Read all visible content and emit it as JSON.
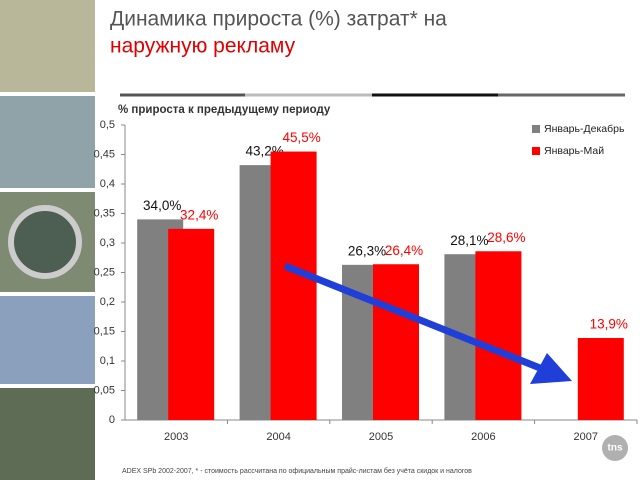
{
  "chart_data": {
    "type": "bar",
    "title_lines": [
      "Динамика прироста (%) затрат* на",
      "наружную рекламу"
    ],
    "subtitle": "% прироста к предыдущему периоду",
    "categories": [
      "2003",
      "2004",
      "2005",
      "2006",
      "2007"
    ],
    "series": [
      {
        "name": "Январь-Декабрь",
        "color": "#808080",
        "values": [
          0.34,
          0.432,
          0.263,
          0.281,
          null
        ],
        "value_labels": [
          "34,0%",
          "43,2%",
          "26,3%",
          "28,1%",
          null
        ]
      },
      {
        "name": "Январь-Май",
        "color": "#ff0000",
        "values": [
          0.324,
          0.455,
          0.264,
          0.286,
          0.139
        ],
        "value_labels": [
          "32,4%",
          "45,5%",
          "26,4%",
          "28,6%",
          "13,9%"
        ]
      }
    ],
    "ylim": [
      0,
      0.5
    ],
    "yticks": [
      0,
      {
        "value": 0.05,
        "label": "0,05"
      },
      {
        "value": 0.1,
        "label": "0,1"
      },
      {
        "value": 0.15,
        "label": "0,15"
      },
      {
        "value": 0.2,
        "label": "0,2"
      },
      {
        "value": 0.25,
        "label": "0,25"
      },
      {
        "value": 0.3,
        "label": "0,3"
      },
      {
        "value": 0.35,
        "label": "0,35"
      },
      {
        "value": 0.4,
        "label": "0,4"
      },
      {
        "value": 0.45,
        "label": "0,45"
      },
      {
        "value": 0.5,
        "label": "0,5"
      }
    ],
    "grid": false,
    "legend": "top-right",
    "footnote": "ADEX SPb 2002-2007, * - стоимость рассчитана по официальным прайс-листам без учёта скидок и налогов",
    "logo": "tns"
  }
}
